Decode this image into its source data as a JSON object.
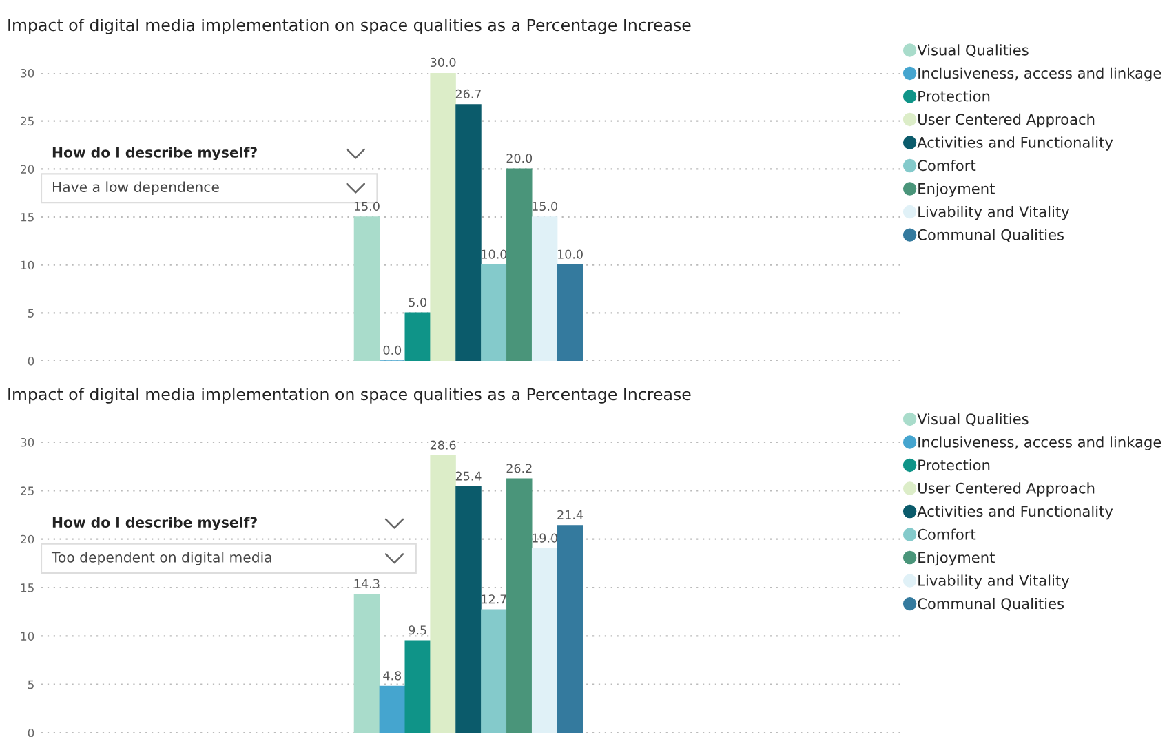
{
  "chart_data": [
    {
      "type": "bar",
      "title": "Impact of digital media implementation on space qualities as a Percentage Increase",
      "categories": [
        null
      ],
      "ylim": [
        0,
        30
      ],
      "yticks": [
        0,
        5,
        10,
        15,
        20,
        25,
        30
      ],
      "grid": "y",
      "legend": "right",
      "tick_labels": "y",
      "annotations": [
        "How do I describe myself?",
        "Have a low dependence"
      ],
      "series": [
        {
          "name": "Visual Qualities",
          "color": "#a9dccb",
          "values": [
            15.0
          ],
          "value_labels": [
            "15.0"
          ]
        },
        {
          "name": "Inclusiveness, access and linkage",
          "color": "#45a5cf",
          "values": [
            0.0
          ],
          "value_labels": [
            "0.0"
          ]
        },
        {
          "name": "Protection",
          "color": "#0f9488",
          "values": [
            5.0
          ],
          "value_labels": [
            "5.0"
          ]
        },
        {
          "name": "User Centered Approach",
          "color": "#dcedc8",
          "values": [
            30.0
          ],
          "value_labels": [
            "30.0"
          ]
        },
        {
          "name": "Activities and Functionality",
          "color": "#0b5b6b",
          "values": [
            26.7
          ],
          "value_labels": [
            "26.7"
          ]
        },
        {
          "name": "Comfort",
          "color": "#84cacb",
          "values": [
            10.0
          ],
          "value_labels": [
            "10.0"
          ]
        },
        {
          "name": "Enjoyment",
          "color": "#4a957a",
          "values": [
            20.0
          ],
          "value_labels": [
            "20.0"
          ]
        },
        {
          "name": "Livability and Vitality",
          "color": "#e0f1f7",
          "values": [
            15.0
          ],
          "value_labels": [
            "15.0"
          ]
        },
        {
          "name": "Communal Qualities",
          "color": "#347a9e",
          "values": [
            10.0
          ],
          "value_labels": [
            "10.0"
          ]
        }
      ]
    },
    {
      "type": "bar",
      "title": "Impact of digital media implementation on space qualities as a Percentage Increase",
      "categories": [
        null
      ],
      "ylim": [
        0,
        30
      ],
      "yticks": [
        0,
        5,
        10,
        15,
        20,
        25,
        30
      ],
      "grid": "y",
      "legend": "right",
      "tick_labels": "y",
      "annotations": [
        "How do I describe myself?",
        "Too dependent on digital media"
      ],
      "series": [
        {
          "name": "Visual Qualities",
          "color": "#a9dccb",
          "values": [
            14.3
          ],
          "value_labels": [
            "14.3"
          ]
        },
        {
          "name": "Inclusiveness, access and linkage",
          "color": "#45a5cf",
          "values": [
            4.8
          ],
          "value_labels": [
            "4.8"
          ]
        },
        {
          "name": "Protection",
          "color": "#0f9488",
          "values": [
            9.5
          ],
          "value_labels": [
            "9.5"
          ]
        },
        {
          "name": "User Centered Approach",
          "color": "#dcedc8",
          "values": [
            28.6
          ],
          "value_labels": [
            "28.6"
          ]
        },
        {
          "name": "Activities and Functionality",
          "color": "#0b5b6b",
          "values": [
            25.4
          ],
          "value_labels": [
            "25.4"
          ]
        },
        {
          "name": "Comfort",
          "color": "#84cacb",
          "values": [
            12.7
          ],
          "value_labels": [
            "12.7"
          ]
        },
        {
          "name": "Enjoyment",
          "color": "#4a957a",
          "values": [
            26.2
          ],
          "value_labels": [
            "26.2"
          ]
        },
        {
          "name": "Livability and Vitality",
          "color": "#e0f1f7",
          "values": [
            19.0
          ],
          "value_labels": [
            "19.0"
          ]
        },
        {
          "name": "Communal Qualities",
          "color": "#347a9e",
          "values": [
            21.4
          ],
          "value_labels": [
            "21.4"
          ]
        }
      ]
    }
  ]
}
